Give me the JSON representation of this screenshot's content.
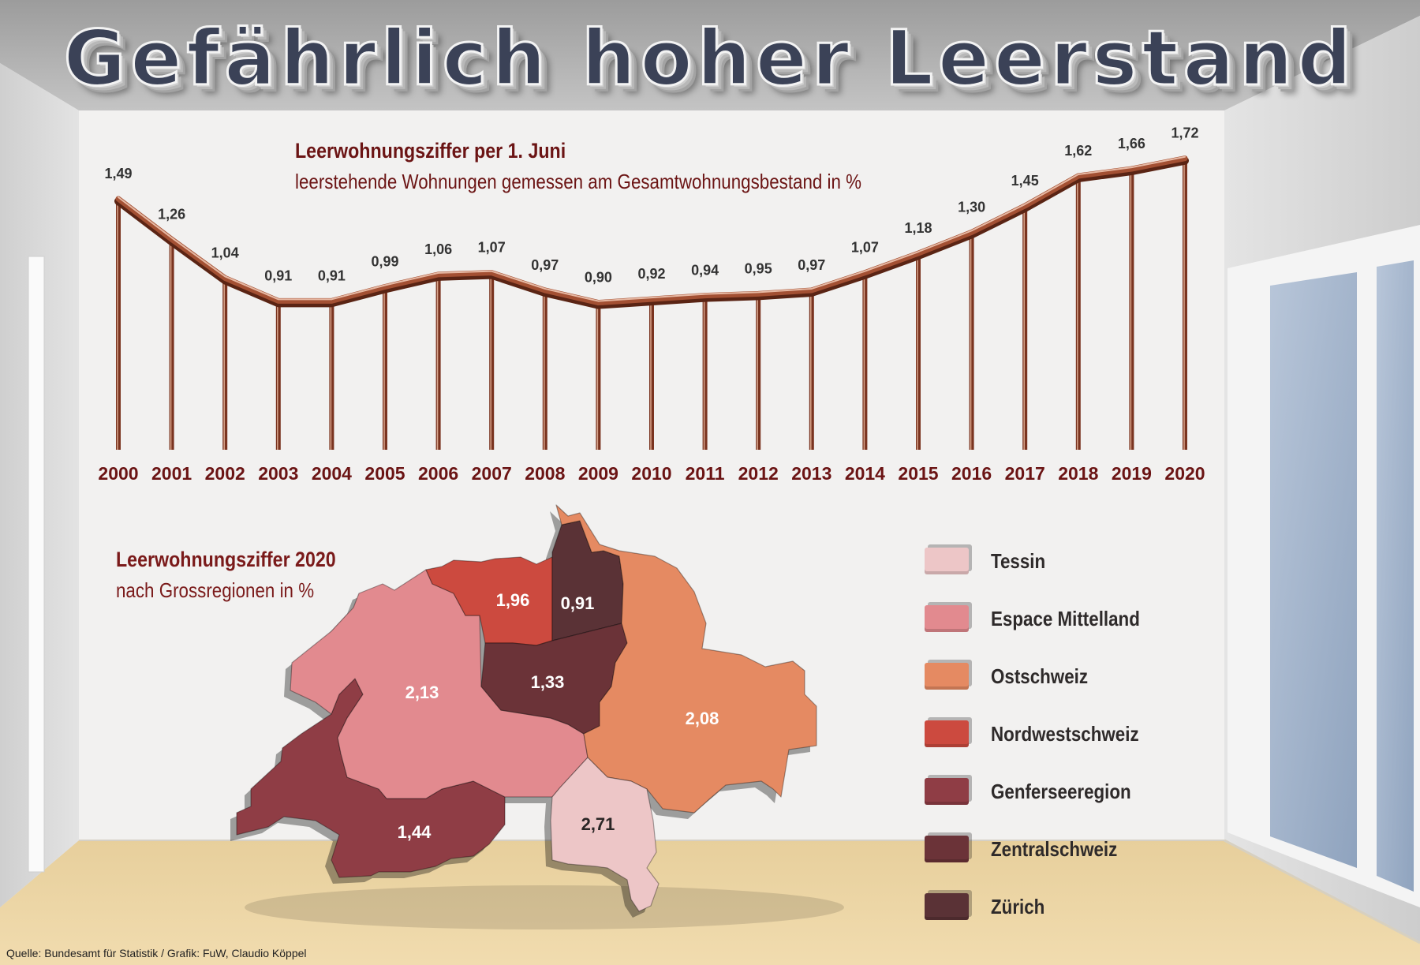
{
  "title": "Gefährlich hoher Leerstand",
  "chart_data": [
    {
      "type": "line",
      "title": "Leerwohnungsziffer per 1. Juni",
      "subtitle": "leerstehende Wohnungen gemessen am Gesamtwohnungsbestand in %",
      "x": [
        "2000",
        "2001",
        "2002",
        "2003",
        "2004",
        "2005",
        "2006",
        "2007",
        "2008",
        "2009",
        "2010",
        "2011",
        "2012",
        "2013",
        "2014",
        "2015",
        "2016",
        "2017",
        "2018",
        "2019",
        "2020"
      ],
      "y": [
        1.49,
        1.26,
        1.04,
        0.91,
        0.91,
        0.99,
        1.06,
        1.07,
        0.97,
        0.9,
        0.92,
        0.94,
        0.95,
        0.97,
        1.07,
        1.18,
        1.3,
        1.45,
        1.62,
        1.66,
        1.72
      ],
      "data_labels": [
        "1,49",
        "1,26",
        "1,04",
        "0,91",
        "0,91",
        "0,99",
        "1,06",
        "1,07",
        "0,97",
        "0,90",
        "0,92",
        "0,94",
        "0,95",
        "0,97",
        "1,07",
        "1,18",
        "1,30",
        "1,45",
        "1,62",
        "1,66",
        "1,72"
      ],
      "color": "#8a3b24"
    },
    {
      "type": "map",
      "title": "Leerwohnungsziffer 2020",
      "subtitle": "nach Grossregionen in %",
      "regions": [
        {
          "name": "Tessin",
          "value": 2.71,
          "label": "2,71",
          "color": "#edc6c7"
        },
        {
          "name": "Espace Mittelland",
          "value": 2.13,
          "label": "2,13",
          "color": "#e28a8f"
        },
        {
          "name": "Ostschweiz",
          "value": 2.08,
          "label": "2,08",
          "color": "#e58a62"
        },
        {
          "name": "Nordwestschweiz",
          "value": 1.96,
          "label": "1,96",
          "color": "#cc4a3f"
        },
        {
          "name": "Genferseeregion",
          "value": 1.44,
          "label": "1,44",
          "color": "#8f3d45"
        },
        {
          "name": "Zentralschweiz",
          "value": 1.33,
          "label": "1,33",
          "color": "#6b3338"
        },
        {
          "name": "Zürich",
          "value": 0.91,
          "label": "0,91",
          "color": "#5a3236"
        }
      ]
    }
  ],
  "legend": [
    {
      "label": "Tessin",
      "color": "#edc6c7"
    },
    {
      "label": "Espace Mittelland",
      "color": "#e28a8f"
    },
    {
      "label": "Ostschweiz",
      "color": "#e58a62"
    },
    {
      "label": "Nordwestschweiz",
      "color": "#cc4a3f"
    },
    {
      "label": "Genferseeregion",
      "color": "#8f3d45"
    },
    {
      "label": "Zentralschweiz",
      "color": "#6b3338"
    },
    {
      "label": "Zürich",
      "color": "#5a3236"
    }
  ],
  "source": "Quelle: Bundesamt für Statistik / Grafik: FuW, Claudio Köppel"
}
